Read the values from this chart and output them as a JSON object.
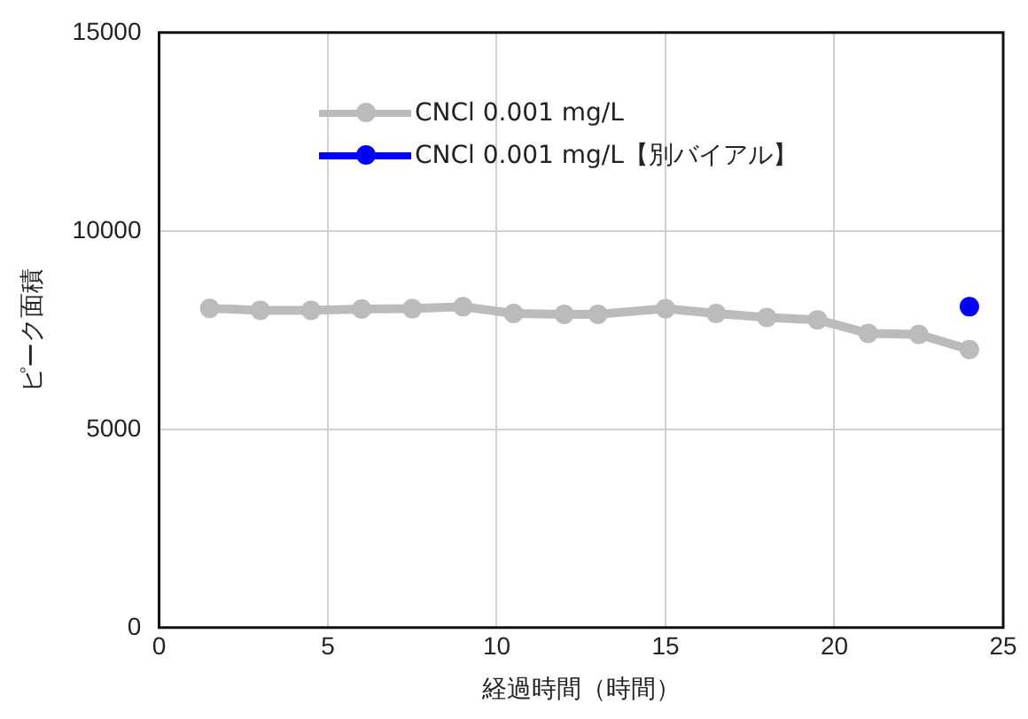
{
  "chart_data": {
    "type": "line",
    "xlabel": "経過時間（時間）",
    "ylabel": "ピーク面積",
    "xlim": [
      0,
      25
    ],
    "xticks": [
      0,
      5,
      10,
      15,
      20,
      25
    ],
    "ylim": [
      0,
      15000
    ],
    "yticks": [
      0,
      5000,
      10000,
      15000
    ],
    "grid": true,
    "legend": "top left",
    "marker": "circle",
    "line_style": "solid",
    "series": [
      {
        "name": "CNCl 0.001 mg/L",
        "color": "#bbbbbb",
        "x": [
          1.5,
          3,
          4.5,
          6,
          7.5,
          9,
          10.5,
          12,
          13,
          15,
          16.5,
          18,
          19.5,
          21,
          22.5,
          24
        ],
        "values": [
          8050,
          8000,
          8000,
          8030,
          8040,
          8090,
          7920,
          7900,
          7900,
          8040,
          7920,
          7820,
          7760,
          7420,
          7390,
          7010
        ]
      },
      {
        "name": "CNCl 0.001 mg/L【別バイアル】",
        "color": "#0000ff",
        "x": [
          24
        ],
        "values": [
          8090
        ]
      }
    ]
  }
}
